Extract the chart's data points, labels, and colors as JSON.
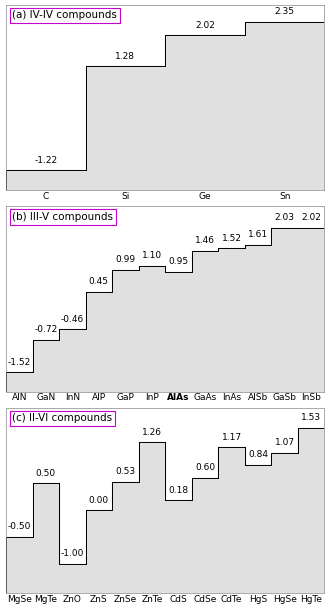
{
  "panel_a": {
    "title": "(a) IV-IV compounds",
    "labels": [
      "C",
      "Si",
      "Ge",
      "Sn"
    ],
    "values": [
      -1.22,
      1.28,
      2.02,
      2.35
    ],
    "ylim": [
      -1.7,
      2.75
    ]
  },
  "panel_b": {
    "title": "(b) III-V compounds",
    "labels": [
      "AlN",
      "GaN",
      "InN",
      "AlP",
      "GaP",
      "InP",
      "AlAs",
      "GaAs",
      "InAs",
      "AlSb",
      "GaSb",
      "InSb"
    ],
    "values": [
      -1.52,
      -0.72,
      -0.46,
      0.45,
      0.99,
      1.1,
      0.95,
      1.46,
      1.52,
      1.61,
      2.03,
      2.02
    ],
    "bold_label": "AlAs",
    "ylim": [
      -2.0,
      2.55
    ]
  },
  "panel_c": {
    "title": "(c) II-VI compounds",
    "labels": [
      "MgSe",
      "MgTe",
      "ZnO",
      "ZnS",
      "ZnSe",
      "ZnTe",
      "CdS",
      "CdSe",
      "CdTe",
      "HgS",
      "HgSe",
      "HgTe"
    ],
    "values": [
      -0.5,
      0.5,
      -1.0,
      0.0,
      0.53,
      1.26,
      0.18,
      0.6,
      1.17,
      0.84,
      1.07,
      1.53
    ],
    "ylim": [
      -1.55,
      1.9
    ]
  },
  "fill_color": "#e0e0e0",
  "edge_color": "#000000",
  "title_edge_color": "#cc00cc",
  "title_fontsize": 7.5,
  "label_fontsize": 6.5,
  "value_fontsize": 6.5,
  "background_color": "#ffffff",
  "ax_bg_color": "#ffffff"
}
